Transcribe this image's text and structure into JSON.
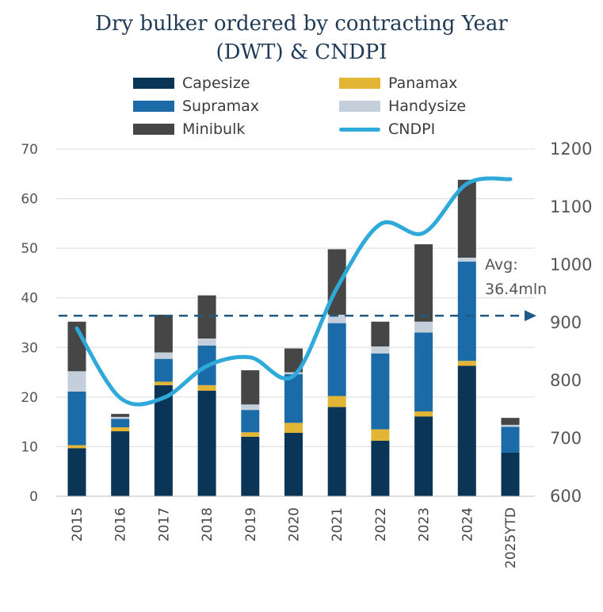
{
  "chart_data": {
    "type": "bar",
    "stacked": true,
    "title_line1": "Dry bulker ordered by contracting Year",
    "title_line2": "(DWT) & CNDPI",
    "categories": [
      "2015",
      "2016",
      "2017",
      "2018",
      "2019",
      "2020",
      "2021",
      "2022",
      "2023",
      "2024",
      "2025YTD"
    ],
    "series": [
      {
        "name": "Capesize",
        "color": "#0b3556",
        "values": [
          9.7,
          13.1,
          22.4,
          21.3,
          12.0,
          12.8,
          18.0,
          11.2,
          16.1,
          26.3,
          8.8
        ]
      },
      {
        "name": "Panamax",
        "color": "#e3b535",
        "values": [
          0.6,
          0.8,
          0.7,
          1.1,
          0.9,
          2.0,
          2.2,
          2.3,
          1.0,
          1.0,
          0.0
        ]
      },
      {
        "name": "Supramax",
        "color": "#1a6ba8",
        "values": [
          10.8,
          1.7,
          4.6,
          8.0,
          4.5,
          9.8,
          14.7,
          15.3,
          15.9,
          20.0,
          5.2
        ]
      },
      {
        "name": "Handysize",
        "color": "#c5cfdb",
        "values": [
          4.1,
          0.4,
          1.3,
          1.4,
          1.1,
          0.4,
          1.7,
          1.4,
          2.2,
          0.8,
          0.4
        ]
      },
      {
        "name": "Minibulk",
        "color": "#464646",
        "values": [
          10.0,
          0.6,
          7.6,
          8.7,
          6.9,
          4.8,
          13.2,
          5.0,
          15.6,
          15.7,
          1.4
        ]
      }
    ],
    "line_series": {
      "name": "CNDPI",
      "color": "#2fa8da",
      "axis": "right",
      "values": [
        890,
        770,
        770,
        825,
        840,
        808,
        960,
        1070,
        1055,
        1140,
        1148
      ]
    },
    "ylim_left": [
      0,
      70
    ],
    "yticks_left": [
      0,
      10,
      20,
      30,
      40,
      50,
      60,
      70
    ],
    "ylim_right": [
      600,
      1200
    ],
    "yticks_right": [
      600,
      700,
      800,
      900,
      1000,
      1100,
      1200
    ],
    "reference_line": {
      "value_left": 36.4,
      "label_line1": "Avg:",
      "label_line2": "36.4mln",
      "color": "#1f5a86"
    },
    "grid": "horizontal",
    "legend_position": "top"
  }
}
